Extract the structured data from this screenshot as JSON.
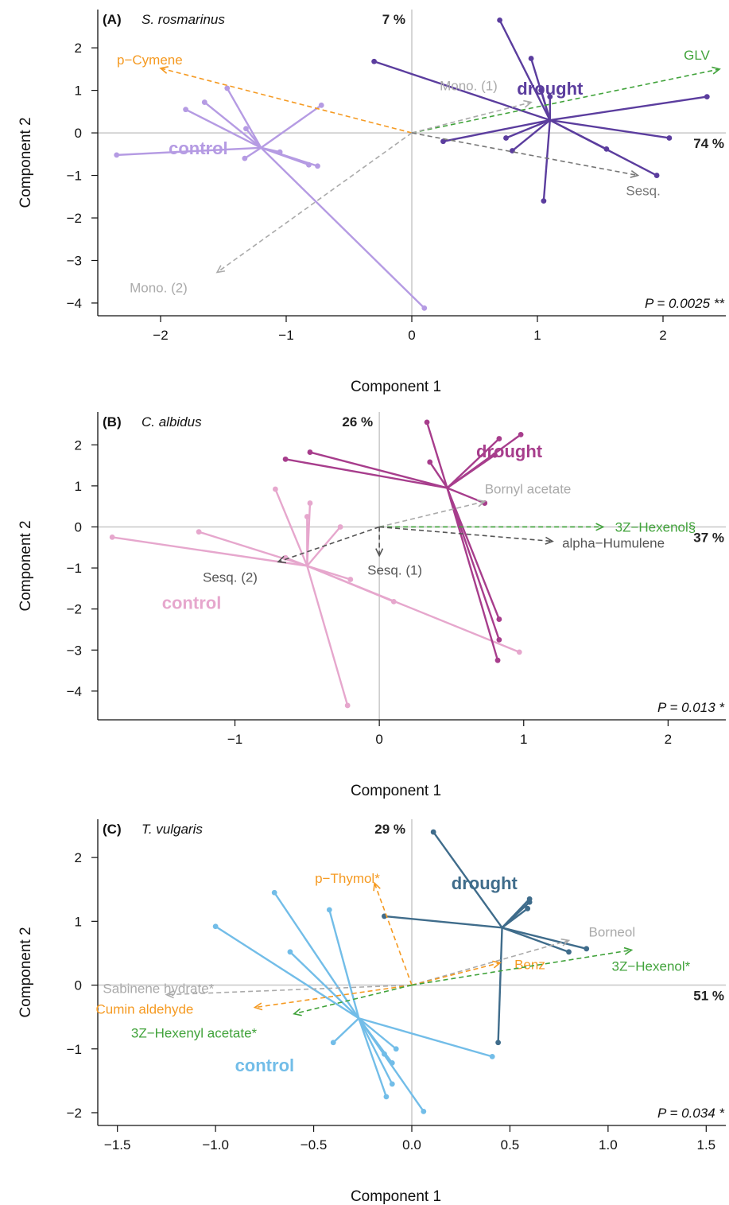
{
  "chart_data": [
    {
      "type": "scatter",
      "panel": "(A)",
      "species": "S. rosmarinus",
      "xlabel": "Component 1",
      "ylabel": "Component 2",
      "xlim": [
        -2.5,
        2.5
      ],
      "ylim": [
        -4.3,
        2.9
      ],
      "xticks": [
        -2,
        -1,
        0,
        1,
        2
      ],
      "yticks": [
        -4,
        -3,
        -2,
        -1,
        0,
        1,
        2
      ],
      "x_pct": "74 %",
      "y_pct": "7 %",
      "p_value": "P = 0.0025 **",
      "groups": [
        {
          "name": "control",
          "color": "#b59be3",
          "centroid": [
            -1.2,
            -0.35
          ],
          "points": [
            [
              -2.35,
              -0.52
            ],
            [
              -1.8,
              0.55
            ],
            [
              -1.65,
              0.72
            ],
            [
              -1.47,
              1.05
            ],
            [
              -1.32,
              0.1
            ],
            [
              -1.33,
              -0.6
            ],
            [
              -1.05,
              -0.45
            ],
            [
              -0.82,
              -0.75
            ],
            [
              -0.75,
              -0.78
            ],
            [
              -0.72,
              0.65
            ],
            [
              0.1,
              -4.12
            ]
          ]
        },
        {
          "name": "drought",
          "color": "#5b3d9e",
          "centroid": [
            1.1,
            0.3
          ],
          "points": [
            [
              0.7,
              2.65
            ],
            [
              0.95,
              1.75
            ],
            [
              -0.3,
              1.68
            ],
            [
              1.03,
              1.0
            ],
            [
              1.1,
              0.85
            ],
            [
              2.35,
              0.85
            ],
            [
              2.05,
              -0.12
            ],
            [
              1.55,
              -0.38
            ],
            [
              1.95,
              -1.0
            ],
            [
              0.75,
              -0.12
            ],
            [
              0.25,
              -0.2
            ],
            [
              0.8,
              -0.42
            ],
            [
              1.05,
              -1.6
            ]
          ]
        }
      ],
      "vectors": [
        {
          "label": "p−Cymene",
          "color": "#f59a22",
          "end": [
            -2.0,
            1.52
          ]
        },
        {
          "label": "GLV",
          "color": "#41a33b",
          "end": [
            2.45,
            1.5
          ]
        },
        {
          "label": "Mono. (1)",
          "color": "#aaaaaa",
          "end": [
            0.95,
            0.72
          ]
        },
        {
          "label": "Sesq.",
          "color": "#777777",
          "end": [
            1.8,
            -1.0
          ]
        },
        {
          "label": "Mono. (2)",
          "color": "#aaaaaa",
          "end": [
            -1.55,
            -3.28
          ]
        }
      ]
    },
    {
      "type": "scatter",
      "panel": "(B)",
      "species": "C. albidus",
      "xlabel": "Component 1",
      "ylabel": "Component 2",
      "xlim": [
        -1.95,
        2.4
      ],
      "ylim": [
        -4.7,
        2.8
      ],
      "xticks": [
        -1,
        0,
        1,
        2
      ],
      "yticks": [
        -4,
        -3,
        -2,
        -1,
        0,
        1,
        2
      ],
      "x_pct": "37 %",
      "y_pct": "26 %",
      "p_value": "P = 0.013 *",
      "groups": [
        {
          "name": "control",
          "color": "#e6a7cd",
          "centroid": [
            -0.5,
            -0.95
          ],
          "points": [
            [
              -1.85,
              -0.25
            ],
            [
              -1.25,
              -0.12
            ],
            [
              -0.72,
              0.92
            ],
            [
              -0.48,
              0.58
            ],
            [
              -0.5,
              0.25
            ],
            [
              -0.27,
              0.0
            ],
            [
              -0.65,
              -0.75
            ],
            [
              -0.2,
              -1.28
            ],
            [
              0.1,
              -1.82
            ],
            [
              0.97,
              -3.05
            ],
            [
              -0.22,
              -4.35
            ]
          ]
        },
        {
          "name": "drought",
          "color": "#a73d8c",
          "centroid": [
            0.47,
            0.95
          ],
          "points": [
            [
              0.33,
              2.55
            ],
            [
              -0.48,
              1.82
            ],
            [
              -0.65,
              1.65
            ],
            [
              0.35,
              1.58
            ],
            [
              0.83,
              2.15
            ],
            [
              0.98,
              2.25
            ],
            [
              0.8,
              1.75
            ],
            [
              0.73,
              0.58
            ],
            [
              0.83,
              -2.25
            ],
            [
              0.83,
              -2.75
            ],
            [
              0.82,
              -3.25
            ]
          ]
        }
      ],
      "vectors": [
        {
          "label": "Bornyl acetate",
          "color": "#aaaaaa",
          "end": [
            0.73,
            0.62
          ]
        },
        {
          "label": "3Z−Hexenol§",
          "color": "#41a33b",
          "end": [
            1.55,
            0.0
          ]
        },
        {
          "label": "alpha−Humulene",
          "color": "#555555",
          "end": [
            1.2,
            -0.35
          ]
        },
        {
          "label": "Sesq. (1)",
          "color": "#555555",
          "end": [
            0.0,
            -0.7
          ]
        },
        {
          "label": "Sesq. (2)",
          "color": "#555555",
          "end": [
            -0.7,
            -0.85
          ]
        }
      ]
    },
    {
      "type": "scatter",
      "panel": "(C)",
      "species": "T. vulgaris",
      "xlabel": "Component 1",
      "ylabel": "Component 2",
      "xlim": [
        -1.6,
        1.6
      ],
      "ylim": [
        -2.2,
        2.6
      ],
      "xticks": [
        -1.5,
        -1.0,
        -0.5,
        0.0,
        0.5,
        1.0,
        1.5
      ],
      "yticks": [
        -2,
        -1,
        0,
        1,
        2
      ],
      "x_pct": "51 %",
      "y_pct": "29 %",
      "p_value": "P = 0.034 *",
      "groups": [
        {
          "name": "control",
          "color": "#72bde8",
          "centroid": [
            -0.27,
            -0.52
          ],
          "points": [
            [
              -1.0,
              0.92
            ],
            [
              -0.7,
              1.45
            ],
            [
              -0.62,
              0.52
            ],
            [
              -0.42,
              1.18
            ],
            [
              -0.4,
              -0.9
            ],
            [
              -0.14,
              -1.08
            ],
            [
              -0.1,
              -1.22
            ],
            [
              -0.1,
              -1.55
            ],
            [
              -0.13,
              -1.75
            ],
            [
              0.06,
              -1.98
            ],
            [
              -0.08,
              -1.0
            ],
            [
              0.41,
              -1.12
            ]
          ]
        },
        {
          "name": "drought",
          "color": "#3f6c8b",
          "centroid": [
            0.46,
            0.9
          ],
          "points": [
            [
              0.11,
              2.4
            ],
            [
              -0.14,
              1.08
            ],
            [
              0.6,
              1.35
            ],
            [
              0.6,
              1.3
            ],
            [
              0.59,
              1.2
            ],
            [
              0.8,
              0.52
            ],
            [
              0.89,
              0.57
            ],
            [
              0.44,
              -0.9
            ]
          ]
        }
      ],
      "vectors": [
        {
          "label": "p−Thymol*",
          "color": "#f59a22",
          "end": [
            -0.19,
            1.6
          ]
        },
        {
          "label": "Borneol",
          "color": "#aaaaaa",
          "end": [
            0.8,
            0.7
          ]
        },
        {
          "label": "Benz",
          "color": "#f59a22",
          "end": [
            0.45,
            0.35
          ]
        },
        {
          "label": "3Z−Hexenol*",
          "color": "#41a33b",
          "end": [
            1.12,
            0.55
          ]
        },
        {
          "label": "Sabinene hydrate*",
          "color": "#aaaaaa",
          "end": [
            -1.25,
            -0.15
          ]
        },
        {
          "label": "Cumin aldehyde",
          "color": "#f59a22",
          "end": [
            -0.8,
            -0.35
          ]
        },
        {
          "label": "3Z−Hexenyl acetate*",
          "color": "#41a33b",
          "end": [
            -0.6,
            -0.45
          ]
        }
      ]
    }
  ]
}
